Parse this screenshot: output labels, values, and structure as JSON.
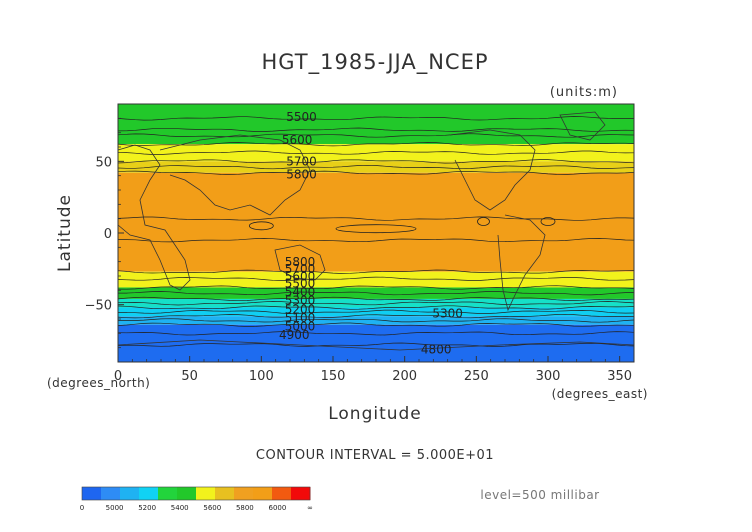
{
  "chart_data": {
    "type": "heatmap",
    "title": "HGT_1985-JJA_NCEP",
    "units_note": "(units:m)",
    "xlabel": "Longitude",
    "ylabel": "Latitude",
    "x_unit_note": "(degrees_east)",
    "y_unit_note": "(degrees_north)",
    "xlim": [
      0,
      360
    ],
    "ylim": [
      -90,
      90
    ],
    "x_ticks": [
      0,
      50,
      100,
      150,
      200,
      250,
      300,
      350
    ],
    "y_ticks": [
      50,
      0,
      -50
    ],
    "contour_interval_text": "CONTOUR INTERVAL = 5.000E+01",
    "level_text": "level=500 millibar",
    "colors": {
      "lt5000": "#1e66f0",
      "5000-5100": "#2e8cf5",
      "5100-5200": "#1fb2f2",
      "5200-5300": "#10d2f4",
      "5300-5400": "#16e8d4",
      "5400-5500": "#22d43c",
      "5500-5600": "#22c82a",
      "5600-5700": "#f2f21c",
      "5700-5800": "#e8c020",
      "5800-5900": "#f0a020",
      "gt5900": "#f29e18"
    },
    "bands": [
      {
        "lat_top": 90,
        "lat_bottom": 62,
        "range": "5400-5600",
        "color": "#22c82a"
      },
      {
        "lat_top": 62,
        "lat_bottom": 50,
        "range": "5600-5700",
        "color": "#f2f21c"
      },
      {
        "lat_top": 50,
        "lat_bottom": 42,
        "range": "5700-5800",
        "color": "#e8d018"
      },
      {
        "lat_top": 42,
        "lat_bottom": -27,
        "range": "5800-5900",
        "color": "#f29e18"
      },
      {
        "lat_top": -27,
        "lat_bottom": -38,
        "range": "5700-5800",
        "color": "#f2f21c"
      },
      {
        "lat_top": -38,
        "lat_bottom": -46,
        "range": "5500-5700",
        "color": "#22c82a"
      },
      {
        "lat_top": -46,
        "lat_bottom": -52,
        "range": "5400-5500",
        "color": "#16e0c8"
      },
      {
        "lat_top": -52,
        "lat_bottom": -58,
        "range": "5300-5400",
        "color": "#10cff2"
      },
      {
        "lat_top": -58,
        "lat_bottom": -64,
        "range": "5200-5300",
        "color": "#1fb2f2"
      },
      {
        "lat_top": -64,
        "lat_bottom": -90,
        "range": "4800-5100",
        "color": "#1e6cf0"
      }
    ],
    "contour_labels": [
      {
        "text": "5500",
        "lon": 128,
        "lat": 78
      },
      {
        "text": "5600",
        "lon": 125,
        "lat": 62
      },
      {
        "text": "5700",
        "lon": 128,
        "lat": 47
      },
      {
        "text": "5800",
        "lon": 128,
        "lat": 38
      },
      {
        "text": "5800",
        "lon": 127,
        "lat": -23
      },
      {
        "text": "5700",
        "lon": 127,
        "lat": -28
      },
      {
        "text": "5600",
        "lon": 127,
        "lat": -33
      },
      {
        "text": "5500",
        "lon": 127,
        "lat": -38
      },
      {
        "text": "5400",
        "lon": 127,
        "lat": -44
      },
      {
        "text": "5300",
        "lon": 127,
        "lat": -50
      },
      {
        "text": "5200",
        "lon": 127,
        "lat": -56
      },
      {
        "text": "5100",
        "lon": 127,
        "lat": -62
      },
      {
        "text": "5000",
        "lon": 127,
        "lat": -68
      },
      {
        "text": "4900",
        "lon": 123,
        "lat": -74
      },
      {
        "text": "5300",
        "lon": 230,
        "lat": -59
      },
      {
        "text": "4800",
        "lon": 222,
        "lat": -84
      }
    ],
    "colorbar": {
      "tick_labels": [
        "0",
        "5000",
        "5200",
        "5400",
        "5600",
        "5800",
        "6000",
        "∞"
      ],
      "colors": [
        "#1e66f0",
        "#2e8cf5",
        "#1fb2f2",
        "#10d2f4",
        "#22d43c",
        "#22c82a",
        "#f2f21c",
        "#e8c020",
        "#f0a020",
        "#f29e18",
        "#f25a10",
        "#f20a0a"
      ]
    }
  }
}
